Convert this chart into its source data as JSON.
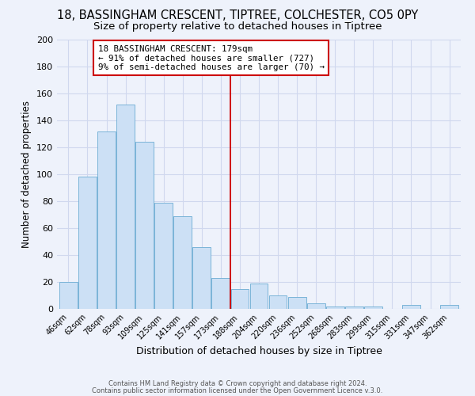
{
  "title": "18, BASSINGHAM CRESCENT, TIPTREE, COLCHESTER, CO5 0PY",
  "subtitle": "Size of property relative to detached houses in Tiptree",
  "xlabel": "Distribution of detached houses by size in Tiptree",
  "ylabel": "Number of detached properties",
  "bar_labels": [
    "46sqm",
    "62sqm",
    "78sqm",
    "93sqm",
    "109sqm",
    "125sqm",
    "141sqm",
    "157sqm",
    "173sqm",
    "188sqm",
    "204sqm",
    "220sqm",
    "236sqm",
    "252sqm",
    "268sqm",
    "283sqm",
    "299sqm",
    "315sqm",
    "331sqm",
    "347sqm",
    "362sqm"
  ],
  "bar_values": [
    20,
    98,
    132,
    152,
    124,
    79,
    69,
    46,
    23,
    15,
    19,
    10,
    9,
    4,
    2,
    2,
    2,
    0,
    3,
    0,
    3
  ],
  "bar_color": "#cce0f5",
  "bar_edge_color": "#7ab4d8",
  "vline_x": 8.5,
  "vline_color": "#cc0000",
  "annotation_title": "18 BASSINGHAM CRESCENT: 179sqm",
  "annotation_line1": "← 91% of detached houses are smaller (727)",
  "annotation_line2": "9% of semi-detached houses are larger (70) →",
  "annotation_box_color": "#ffffff",
  "annotation_box_edge": "#cc0000",
  "ylim": [
    0,
    200
  ],
  "yticks": [
    0,
    20,
    40,
    60,
    80,
    100,
    120,
    140,
    160,
    180,
    200
  ],
  "footnote1": "Contains HM Land Registry data © Crown copyright and database right 2024.",
  "footnote2": "Contains public sector information licensed under the Open Government Licence v.3.0.",
  "bg_color": "#eef2fb",
  "title_fontsize": 10.5,
  "subtitle_fontsize": 9.5,
  "grid_color": "#d0d8ee"
}
